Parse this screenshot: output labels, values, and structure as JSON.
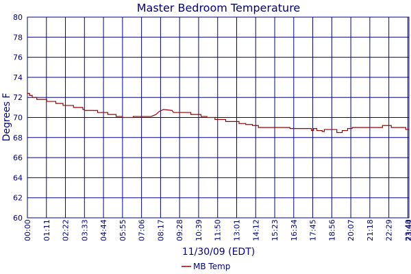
{
  "chart_data": {
    "type": "line",
    "title": "Master Bedroom Temperature",
    "xlabel": "11/30/09 (EDT)",
    "ylabel": "Degrees F",
    "x_ticks": [
      "00:00",
      "01:11",
      "02:22",
      "03:33",
      "04:44",
      "05:55",
      "07:06",
      "08:17",
      "09:28",
      "10:39",
      "11:50",
      "13:01",
      "14:12",
      "15:23",
      "16:34",
      "17:45",
      "18:56",
      "20:07",
      "21:18",
      "22:29",
      "23:40",
      "23:44"
    ],
    "x_tick_minutes": [
      0,
      71,
      142,
      213,
      284,
      355,
      426,
      497,
      568,
      639,
      710,
      781,
      852,
      923,
      994,
      1065,
      1136,
      1207,
      1278,
      1349,
      1420,
      1424
    ],
    "xlim_minutes": [
      0,
      1424
    ],
    "ylim": [
      60,
      80
    ],
    "y_ticks": [
      60,
      62,
      64,
      66,
      68,
      70,
      72,
      74,
      76,
      78,
      80
    ],
    "grid": true,
    "legend_position": "bottom-center",
    "series": [
      {
        "name": "MB Temp",
        "color": "#990000",
        "points": [
          [
            0,
            72.4
          ],
          [
            8,
            72.4
          ],
          [
            8,
            72.2
          ],
          [
            18,
            72.2
          ],
          [
            18,
            72.0
          ],
          [
            35,
            72.0
          ],
          [
            35,
            71.8
          ],
          [
            72,
            71.8
          ],
          [
            72,
            71.6
          ],
          [
            106,
            71.6
          ],
          [
            106,
            71.4
          ],
          [
            133,
            71.4
          ],
          [
            133,
            71.2
          ],
          [
            172,
            71.2
          ],
          [
            172,
            71.0
          ],
          [
            207,
            71.0
          ],
          [
            207,
            70.8
          ],
          [
            213,
            70.8
          ],
          [
            213,
            70.7
          ],
          [
            262,
            70.7
          ],
          [
            262,
            70.5
          ],
          [
            300,
            70.5
          ],
          [
            300,
            70.3
          ],
          [
            331,
            70.3
          ],
          [
            331,
            70.1
          ],
          [
            355,
            70.1
          ],
          [
            355,
            70.0
          ],
          [
            395,
            70.0
          ],
          [
            395,
            70.1
          ],
          [
            462,
            70.1
          ],
          [
            480,
            70.3
          ],
          [
            492,
            70.6
          ],
          [
            508,
            70.8
          ],
          [
            540,
            70.7
          ],
          [
            545,
            70.5
          ],
          [
            610,
            70.5
          ],
          [
            610,
            70.3
          ],
          [
            648,
            70.3
          ],
          [
            648,
            70.1
          ],
          [
            670,
            70.1
          ],
          [
            670,
            70.0
          ],
          [
            700,
            70.0
          ],
          [
            700,
            69.8
          ],
          [
            740,
            69.8
          ],
          [
            740,
            69.6
          ],
          [
            790,
            69.6
          ],
          [
            790,
            69.4
          ],
          [
            815,
            69.4
          ],
          [
            815,
            69.3
          ],
          [
            840,
            69.3
          ],
          [
            840,
            69.2
          ],
          [
            862,
            69.2
          ],
          [
            862,
            69.0
          ],
          [
            980,
            69.0
          ],
          [
            980,
            68.9
          ],
          [
            1060,
            68.9
          ],
          [
            1060,
            68.7
          ],
          [
            1068,
            68.7
          ],
          [
            1068,
            68.9
          ],
          [
            1080,
            68.9
          ],
          [
            1080,
            68.7
          ],
          [
            1100,
            68.7
          ],
          [
            1100,
            68.6
          ],
          [
            1108,
            68.6
          ],
          [
            1108,
            68.8
          ],
          [
            1155,
            68.8
          ],
          [
            1155,
            68.5
          ],
          [
            1175,
            68.5
          ],
          [
            1175,
            68.7
          ],
          [
            1195,
            68.7
          ],
          [
            1195,
            68.9
          ],
          [
            1212,
            68.9
          ],
          [
            1212,
            69.0
          ],
          [
            1325,
            69.0
          ],
          [
            1325,
            69.2
          ],
          [
            1358,
            69.2
          ],
          [
            1358,
            69.0
          ],
          [
            1412,
            69.0
          ],
          [
            1412,
            68.8
          ],
          [
            1424,
            68.8
          ]
        ]
      }
    ]
  }
}
